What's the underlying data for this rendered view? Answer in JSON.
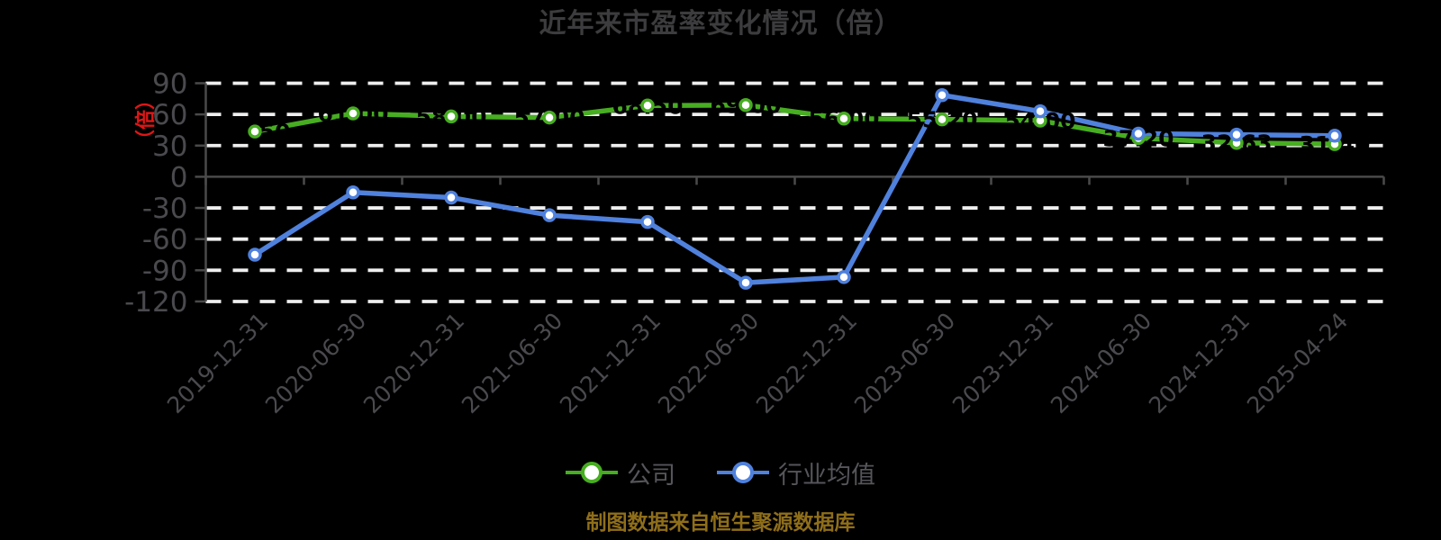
{
  "chart_data": {
    "type": "line",
    "title": "近年来市盈率变化情况（倍）",
    "y_axis_name": "（倍）",
    "footer": "制图数据来自恒生聚源数据库",
    "y_ticks": [
      90,
      60,
      30,
      0,
      -30,
      -60,
      -90,
      -120
    ],
    "ylim": [
      -120,
      90
    ],
    "grid": true,
    "legend_position": "bottom",
    "categories": [
      "2019-12-31",
      "2020-06-30",
      "2020-12-31",
      "2021-06-30",
      "2021-12-31",
      "2022-06-30",
      "2022-12-31",
      "2023-06-30",
      "2023-12-31",
      "2024-06-30",
      "2024-12-31",
      "2025-04-24"
    ],
    "series": [
      {
        "name": "公司",
        "color": "#47ad21",
        "values": [
          43.5,
          61,
          58,
          57,
          68.5,
          69,
          56,
          55.2,
          54,
          37.2,
          32.63,
          31.4
        ],
        "point_labels": [
          "43.50",
          "61.00",
          "58.00",
          "57.00",
          "68.50",
          "69.00",
          "56.00",
          "55.20",
          "54.00",
          "37.20",
          "32.63",
          "31.40"
        ],
        "point_label_color": "#000000"
      },
      {
        "name": "行业均值",
        "color": "#4f81dd",
        "values": [
          -75,
          -15,
          -20,
          -37,
          -43.5,
          -102,
          -96.5,
          78.5,
          63,
          41.5,
          40.5,
          39.5
        ],
        "point_labels": null
      }
    ]
  },
  "colors": {
    "background": "#000000",
    "title_text": "#3c3c3e",
    "axis_text": "#4a4a4e",
    "legend_text": "#55555a",
    "grid_line": "#efefef",
    "axis_line": "#4a4a4a",
    "y_axis_name_red": "#e01616",
    "footer_gold": "#8f6e1a",
    "marker_fill": "#ffffff"
  }
}
